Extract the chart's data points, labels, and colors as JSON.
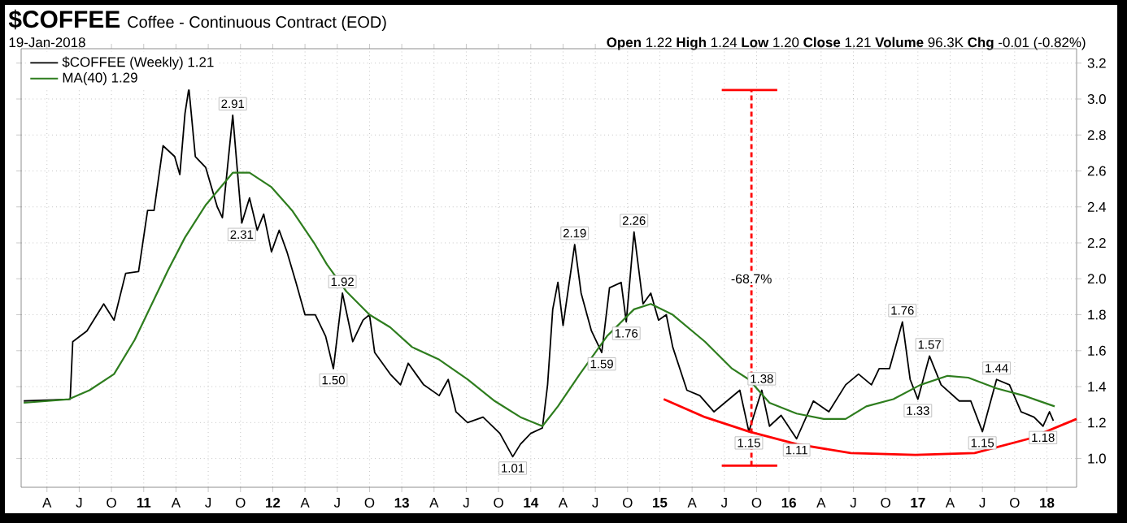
{
  "chart_data": {
    "type": "line",
    "title": "$COFFEE",
    "subtitle": "Coffee - Continuous Contract (EOD)",
    "annotations": [
      "19-Jan-2018",
      "**Open** 1.22 **High** 1.24 **Low** 1.20 **Close** 1.21 **Volume** 96.3K **Chg** -0.01 (-0.82%)",
      {
        "text": "2.91",
        "x": 2011.69,
        "y": 2.91
      },
      {
        "text": "2.31",
        "x": 2011.76,
        "y": 2.31
      },
      {
        "text": "1.92",
        "x": 2012.54,
        "y": 1.92
      },
      {
        "text": "1.50",
        "x": 2012.47,
        "y": 1.5
      },
      {
        "text": "1.01",
        "x": 2013.86,
        "y": 1.01
      },
      {
        "text": "2.19",
        "x": 2014.34,
        "y": 2.19
      },
      {
        "text": "2.26",
        "x": 2014.8,
        "y": 2.26
      },
      {
        "text": "1.59",
        "x": 2014.55,
        "y": 1.59
      },
      {
        "text": "1.76",
        "x": 2014.74,
        "y": 1.76
      },
      {
        "text": "1.38",
        "x": 2015.79,
        "y": 1.38
      },
      {
        "text": "1.15",
        "x": 2015.69,
        "y": 1.15
      },
      {
        "text": "1.11",
        "x": 2016.06,
        "y": 1.11
      },
      {
        "text": "1.76",
        "x": 2016.88,
        "y": 1.76
      },
      {
        "text": "1.57",
        "x": 2017.09,
        "y": 1.57
      },
      {
        "text": "1.33",
        "x": 2017.0,
        "y": 1.33
      },
      {
        "text": "1.44",
        "x": 2017.61,
        "y": 1.44
      },
      {
        "text": "1.15",
        "x": 2017.5,
        "y": 1.15
      },
      {
        "text": "1.18",
        "x": 2017.97,
        "y": 1.18
      },
      {
        "text": "-68.7%",
        "x": 2015.71,
        "y": 2.0
      }
    ],
    "xlim": [
      2010.05,
      2018.23
    ],
    "ylim": [
      0.84,
      3.28
    ],
    "xticks": [
      {
        "value": 2010.25,
        "label": "A"
      },
      {
        "value": 2010.5,
        "label": "J"
      },
      {
        "value": 2010.75,
        "label": "O"
      },
      {
        "value": 2011,
        "label": "11"
      },
      {
        "value": 2011.25,
        "label": "A"
      },
      {
        "value": 2011.5,
        "label": "J"
      },
      {
        "value": 2011.75,
        "label": "O"
      },
      {
        "value": 2012,
        "label": "12"
      },
      {
        "value": 2012.25,
        "label": "A"
      },
      {
        "value": 2012.5,
        "label": "J"
      },
      {
        "value": 2012.75,
        "label": "O"
      },
      {
        "value": 2013,
        "label": "13"
      },
      {
        "value": 2013.25,
        "label": "A"
      },
      {
        "value": 2013.5,
        "label": "J"
      },
      {
        "value": 2013.75,
        "label": "O"
      },
      {
        "value": 2014,
        "label": "14"
      },
      {
        "value": 2014.25,
        "label": "A"
      },
      {
        "value": 2014.5,
        "label": "J"
      },
      {
        "value": 2014.75,
        "label": "O"
      },
      {
        "value": 2015,
        "label": "15"
      },
      {
        "value": 2015.25,
        "label": "A"
      },
      {
        "value": 2015.5,
        "label": "J"
      },
      {
        "value": 2015.75,
        "label": "O"
      },
      {
        "value": 2016,
        "label": "16"
      },
      {
        "value": 2016.25,
        "label": "A"
      },
      {
        "value": 2016.5,
        "label": "J"
      },
      {
        "value": 2016.75,
        "label": "O"
      },
      {
        "value": 2017,
        "label": "17"
      },
      {
        "value": 2017.25,
        "label": "A"
      },
      {
        "value": 2017.5,
        "label": "J"
      },
      {
        "value": 2017.75,
        "label": "O"
      },
      {
        "value": 2018,
        "label": "18"
      }
    ],
    "yticks": [
      {
        "value": 1,
        "label": "1.0"
      },
      {
        "value": 1.2,
        "label": "1.2"
      },
      {
        "value": 1.4,
        "label": "1.4"
      },
      {
        "value": 1.6,
        "label": "1.6"
      },
      {
        "value": 1.8,
        "label": "1.8"
      },
      {
        "value": 2,
        "label": "2.0"
      },
      {
        "value": 2.2,
        "label": "2.2"
      },
      {
        "value": 2.4,
        "label": "2.4"
      },
      {
        "value": 2.6,
        "label": "2.6"
      },
      {
        "value": 2.8,
        "label": "2.8"
      },
      {
        "value": 3,
        "label": "3.0"
      },
      {
        "value": 3.2,
        "label": "3.2"
      }
    ],
    "grid": true,
    "legend": "top left",
    "marker": "none",
    "series": [
      {
        "name": "$COFFEE (Weekly) 1.21",
        "color": "#000000",
        "x": [
          2010.07,
          2010.43,
          2010.45,
          2010.56,
          2010.69,
          2010.77,
          2010.86,
          2010.96,
          2011.03,
          2011.08,
          2011.15,
          2011.24,
          2011.28,
          2011.32,
          2011.35,
          2011.4,
          2011.48,
          2011.57,
          2011.61,
          2011.69,
          2011.76,
          2011.82,
          2011.88,
          2011.93,
          2011.99,
          2012.05,
          2012.11,
          2012.18,
          2012.25,
          2012.33,
          2012.41,
          2012.47,
          2012.54,
          2012.62,
          2012.7,
          2012.75,
          2012.79,
          2012.91,
          2012.99,
          2013.05,
          2013.17,
          2013.29,
          2013.36,
          2013.42,
          2013.51,
          2013.63,
          2013.76,
          2013.86,
          2013.92,
          2014.0,
          2014.09,
          2014.13,
          2014.17,
          2014.21,
          2014.25,
          2014.34,
          2014.39,
          2014.47,
          2014.55,
          2014.61,
          2014.7,
          2014.74,
          2014.8,
          2014.87,
          2014.93,
          2014.99,
          2015.05,
          2015.1,
          2015.21,
          2015.31,
          2015.42,
          2015.52,
          2015.62,
          2015.69,
          2015.79,
          2015.85,
          2015.94,
          2016.06,
          2016.19,
          2016.31,
          2016.44,
          2016.54,
          2016.64,
          2016.7,
          2016.78,
          2016.88,
          2016.94,
          2017.0,
          2017.09,
          2017.18,
          2017.32,
          2017.41,
          2017.5,
          2017.61,
          2017.71,
          2017.8,
          2017.9,
          2017.97,
          2018.02,
          2018.05
        ],
        "values": [
          1.32,
          1.33,
          1.65,
          1.71,
          1.86,
          1.77,
          2.03,
          2.04,
          2.38,
          2.38,
          2.74,
          2.68,
          2.58,
          2.92,
          3.06,
          2.68,
          2.62,
          2.4,
          2.34,
          2.91,
          2.31,
          2.45,
          2.27,
          2.36,
          2.15,
          2.27,
          2.15,
          1.98,
          1.8,
          1.8,
          1.68,
          1.5,
          1.92,
          1.65,
          1.77,
          1.8,
          1.59,
          1.47,
          1.41,
          1.53,
          1.41,
          1.35,
          1.44,
          1.26,
          1.2,
          1.23,
          1.14,
          1.01,
          1.08,
          1.14,
          1.17,
          1.41,
          1.83,
          1.98,
          1.74,
          2.19,
          1.92,
          1.71,
          1.59,
          1.95,
          1.98,
          1.76,
          2.26,
          1.86,
          1.92,
          1.77,
          1.8,
          1.62,
          1.38,
          1.35,
          1.26,
          1.32,
          1.38,
          1.15,
          1.38,
          1.18,
          1.24,
          1.11,
          1.32,
          1.26,
          1.41,
          1.47,
          1.41,
          1.5,
          1.5,
          1.76,
          1.44,
          1.33,
          1.57,
          1.41,
          1.32,
          1.32,
          1.15,
          1.44,
          1.41,
          1.26,
          1.23,
          1.18,
          1.26,
          1.21
        ]
      },
      {
        "name": "MA(40) 1.29",
        "color": "#2e7d1e",
        "x": [
          2010.07,
          2010.42,
          2010.58,
          2010.77,
          2010.93,
          2011.07,
          2011.19,
          2011.32,
          2011.48,
          2011.69,
          2011.82,
          2011.99,
          2012.15,
          2012.32,
          2012.42,
          2012.57,
          2012.75,
          2012.91,
          2013.08,
          2013.29,
          2013.51,
          2013.72,
          2013.92,
          2014.09,
          2014.21,
          2014.38,
          2014.59,
          2014.8,
          2014.93,
          2015.1,
          2015.35,
          2015.56,
          2015.69,
          2015.85,
          2016.06,
          2016.27,
          2016.44,
          2016.6,
          2016.81,
          2017.02,
          2017.23,
          2017.39,
          2017.61,
          2017.82,
          2018.06
        ],
        "values": [
          1.31,
          1.33,
          1.38,
          1.47,
          1.66,
          1.87,
          2.05,
          2.23,
          2.41,
          2.59,
          2.59,
          2.51,
          2.38,
          2.2,
          2.08,
          1.93,
          1.8,
          1.73,
          1.62,
          1.55,
          1.44,
          1.32,
          1.23,
          1.18,
          1.29,
          1.47,
          1.68,
          1.83,
          1.86,
          1.8,
          1.65,
          1.5,
          1.44,
          1.31,
          1.25,
          1.22,
          1.22,
          1.29,
          1.33,
          1.41,
          1.46,
          1.45,
          1.39,
          1.35,
          1.29
        ]
      },
      {
        "color": "#ff0000",
        "x": [
          2015.03,
          2015.35,
          2015.69,
          2016.06,
          2016.48,
          2016.98,
          2017.44,
          2017.86,
          2018.23
        ],
        "values": [
          1.33,
          1.23,
          1.15,
          1.08,
          1.03,
          1.02,
          1.03,
          1.11,
          1.22
        ]
      },
      {
        "color": "#ff0000",
        "line_style": "dashed",
        "x": [
          2015.71,
          2015.71
        ],
        "values": [
          0.96,
          3.05
        ]
      },
      {
        "color": "#ff0000",
        "x": [
          2015.48,
          2015.91
        ],
        "values": [
          3.05,
          3.05
        ]
      },
      {
        "color": "#ff0000",
        "x": [
          2015.48,
          2015.91
        ],
        "values": [
          0.96,
          0.96
        ]
      }
    ]
  }
}
